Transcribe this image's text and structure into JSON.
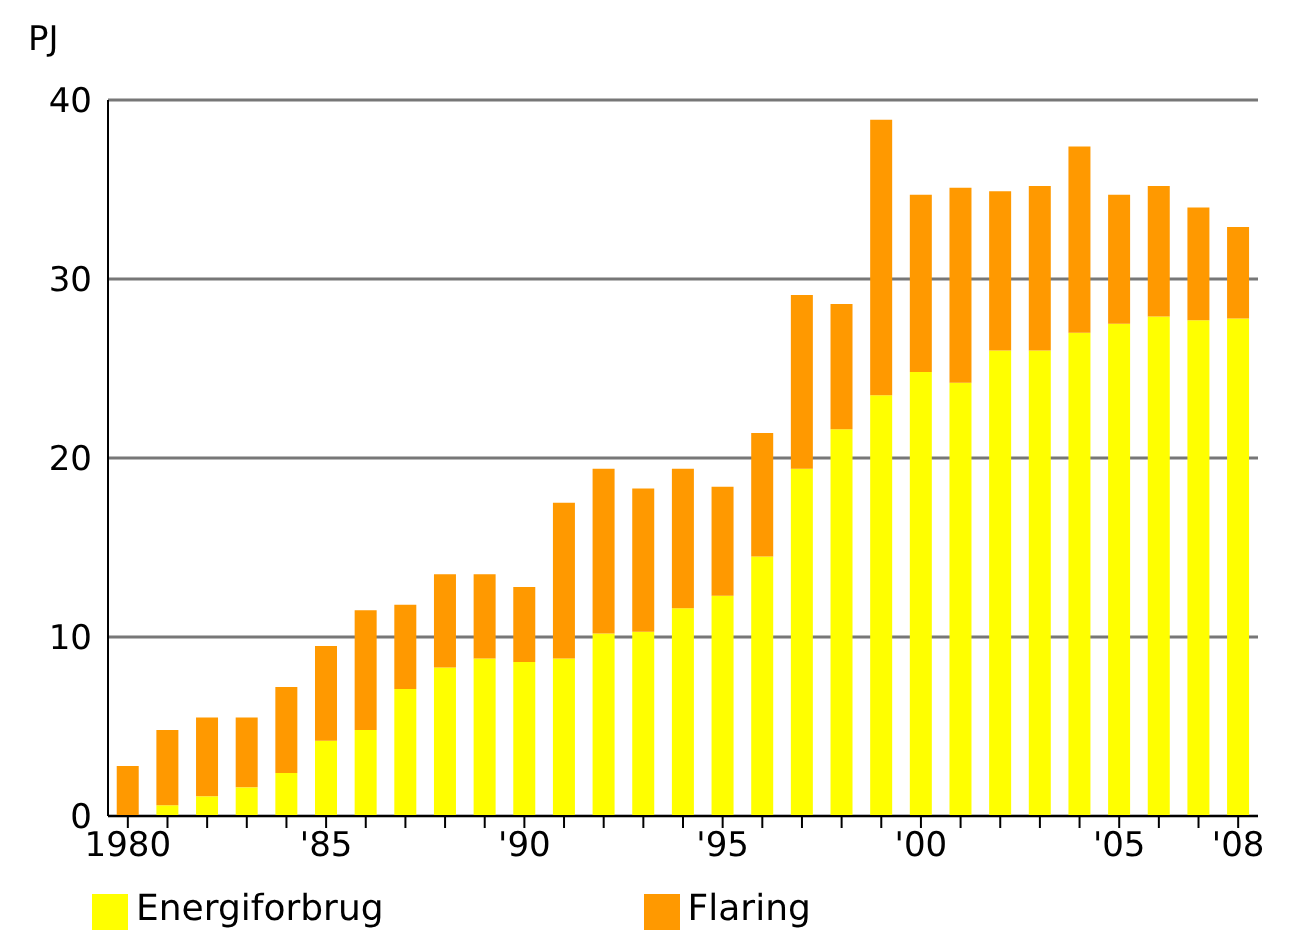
{
  "chart_data": {
    "type": "bar",
    "stacked": true,
    "ylabel": "PJ",
    "categories": [
      "1980",
      null,
      null,
      null,
      null,
      "'85",
      null,
      null,
      null,
      null,
      "'90",
      null,
      null,
      null,
      null,
      "'95",
      null,
      null,
      null,
      null,
      "'00",
      null,
      null,
      null,
      null,
      "'05",
      null,
      null,
      "'08"
    ],
    "series": [
      {
        "name": "Energiforbrug",
        "color": "#ffff00",
        "values": [
          0,
          0.6,
          1.1,
          1.6,
          2.4,
          4.2,
          4.8,
          7.1,
          8.3,
          8.8,
          8.6,
          8.8,
          10.2,
          10.3,
          11.6,
          12.3,
          14.5,
          19.4,
          21.6,
          23.5,
          24.8,
          24.2,
          26.0,
          26.0,
          27.0,
          27.5,
          27.9,
          27.7,
          27.8
        ]
      },
      {
        "name": "Flaring",
        "color": "#ff9900",
        "values": [
          2.8,
          4.2,
          4.4,
          3.9,
          4.8,
          5.3,
          6.7,
          4.7,
          5.2,
          4.7,
          4.2,
          8.7,
          9.2,
          8.0,
          7.8,
          6.1,
          6.9,
          9.7,
          7.0,
          15.4,
          9.9,
          10.9,
          8.9,
          9.2,
          10.4,
          7.2,
          7.3,
          6.3,
          5.1
        ]
      }
    ],
    "ylim": [
      0,
      40
    ],
    "yticks": [
      0,
      10,
      20,
      30,
      40
    ],
    "grid": "y",
    "legend": "bottom"
  }
}
